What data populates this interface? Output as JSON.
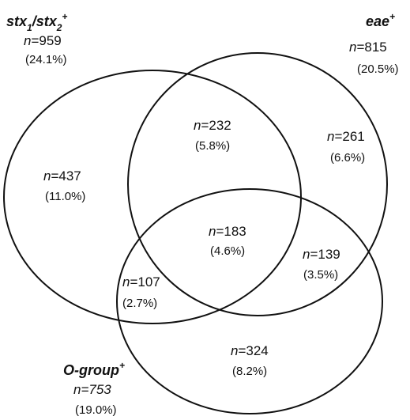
{
  "sets": {
    "stx": {
      "title_main": "stx",
      "sub1": "1",
      "slash": "/stx",
      "sub2": "2",
      "sup": "+",
      "n_prefix": "n",
      "n_value": "=959",
      "pct": "(24.1%)"
    },
    "eae": {
      "title_main": "eae",
      "sup": "+",
      "n_prefix": "n",
      "n_value": "=815",
      "pct": "(20.5%)"
    },
    "ogroup": {
      "title_main": "O-group",
      "sup": "+",
      "n_label": "n=753",
      "pct": "(19.0%)"
    }
  },
  "regions": [
    {
      "id": "stx-only",
      "n_prefix": "n",
      "n_value": "=437",
      "pct": "(11.0%)"
    },
    {
      "id": "stx-eae",
      "n_prefix": "n",
      "n_value": "=232",
      "pct": "(5.8%)"
    },
    {
      "id": "eae-only",
      "n_prefix": "n",
      "n_value": "=261",
      "pct": "(6.6%)"
    },
    {
      "id": "all-three",
      "n_prefix": "n",
      "n_value": "=183",
      "pct": "(4.6%)"
    },
    {
      "id": "eae-ogroup",
      "n_prefix": "n",
      "n_value": "=139",
      "pct": "(3.5%)"
    },
    {
      "id": "stx-ogroup",
      "n_prefix": "n",
      "n_value": "=107",
      "pct": "(2.7%)"
    },
    {
      "id": "ogroup-only",
      "n_prefix": "n",
      "n_value": "=324",
      "pct": "(8.2%)"
    }
  ]
}
